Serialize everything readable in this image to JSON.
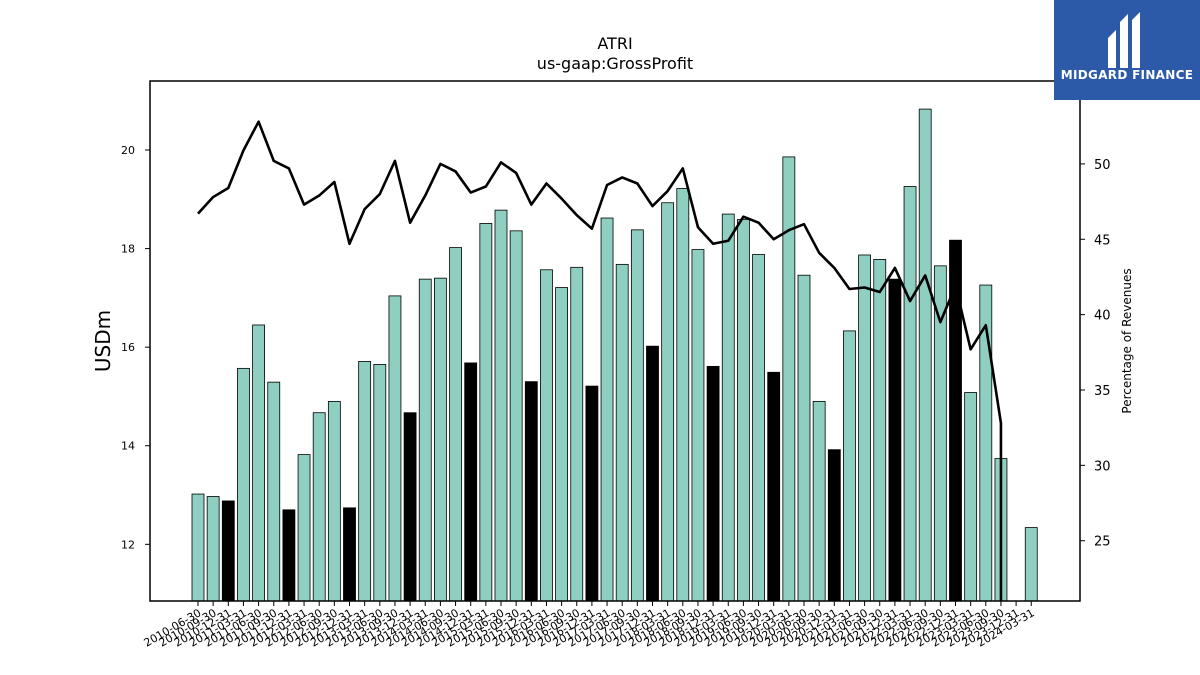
{
  "branding": {
    "name": "MIDGARD FINANCE"
  },
  "chart_data": {
    "type": "bar",
    "title": "ATRI",
    "subtitle": "us-gaap:GrossProfit",
    "ylabel": "USDm",
    "y2label": "Percentage of Revenues",
    "ylim": [
      10.85,
      21.4
    ],
    "y2lim": [
      21.0,
      55.5
    ],
    "yticks": [
      12,
      14,
      16,
      18,
      20
    ],
    "y2ticks": [
      25,
      30,
      35,
      40,
      45,
      50
    ],
    "colors": {
      "quarter_bar": "#8ecfc2",
      "annual_bar": "#000000",
      "line": "#000000"
    },
    "categories": [
      "2010-06-30",
      "2010-09-30",
      "2010-12-31",
      "2011-03-31",
      "2011-06-30",
      "2011-09-30",
      "2011-12-31",
      "2012-03-31",
      "2012-06-30",
      "2012-09-30",
      "2012-12-31",
      "2013-03-31",
      "2013-06-30",
      "2013-09-30",
      "2013-12-31",
      "2014-03-31",
      "2014-06-30",
      "2014-09-30",
      "2014-12-31",
      "2015-03-31",
      "2015-06-30",
      "2015-09-30",
      "2015-12-31",
      "2016-03-31",
      "2016-06-30",
      "2016-09-30",
      "2016-12-31",
      "2017-03-31",
      "2017-06-30",
      "2017-09-30",
      "2017-12-31",
      "2018-03-31",
      "2018-06-30",
      "2018-09-30",
      "2018-12-31",
      "2019-03-31",
      "2019-06-30",
      "2019-09-30",
      "2019-12-31",
      "2020-03-31",
      "2020-06-30",
      "2020-09-30",
      "2020-12-31",
      "2021-03-31",
      "2021-06-30",
      "2021-09-30",
      "2021-12-31",
      "2022-03-31",
      "2022-06-30",
      "2022-09-30",
      "2022-12-31",
      "2023-03-31",
      "2023-06-30",
      "2023-09-30",
      "2023-12-31",
      "2024-03-31"
    ],
    "series": [
      {
        "values": [
          13.02,
          12.97,
          12.88,
          15.57,
          16.45,
          15.29,
          12.7,
          13.82,
          14.67,
          14.9,
          12.74,
          15.71,
          15.65,
          17.04,
          14.67,
          17.38,
          17.4,
          18.02,
          15.68,
          18.51,
          18.78,
          18.36,
          15.3,
          17.57,
          17.21,
          17.62,
          15.21,
          18.62,
          17.68,
          18.38,
          16.02,
          18.93,
          19.22,
          17.98,
          15.61,
          18.7,
          18.59,
          17.88,
          15.49,
          19.86,
          17.46,
          14.9,
          13.92,
          16.33,
          17.87,
          17.78,
          17.38,
          19.26,
          20.83,
          17.65,
          18.17,
          15.08,
          17.26,
          13.74,
          null,
          12.34
        ],
        "annual": [
          false,
          false,
          true,
          false,
          false,
          false,
          true,
          false,
          false,
          false,
          true,
          false,
          false,
          false,
          true,
          false,
          false,
          false,
          true,
          false,
          false,
          false,
          true,
          false,
          false,
          false,
          true,
          false,
          false,
          false,
          true,
          false,
          false,
          false,
          true,
          false,
          false,
          false,
          true,
          false,
          false,
          false,
          true,
          false,
          false,
          false,
          true,
          false,
          false,
          false,
          true,
          false,
          false,
          false,
          false,
          false
        ]
      },
      {
        "values": [
          46.7,
          47.8,
          48.4,
          50.9,
          52.8,
          50.2,
          49.7,
          47.3,
          47.9,
          48.8,
          44.7,
          47.0,
          48.0,
          50.2,
          46.1,
          47.9,
          50.0,
          49.5,
          48.1,
          48.5,
          50.1,
          49.4,
          47.3,
          48.7,
          47.7,
          46.6,
          45.7,
          48.6,
          49.1,
          48.7,
          47.2,
          48.2,
          49.7,
          45.8,
          44.7,
          44.9,
          46.5,
          46.1,
          45.0,
          45.6,
          46.0,
          44.1,
          43.1,
          41.7,
          41.8,
          41.5,
          43.1,
          40.9,
          42.6,
          39.5,
          41.9,
          37.7,
          39.3,
          32.8,
          null,
          null
        ]
      }
    ]
  }
}
